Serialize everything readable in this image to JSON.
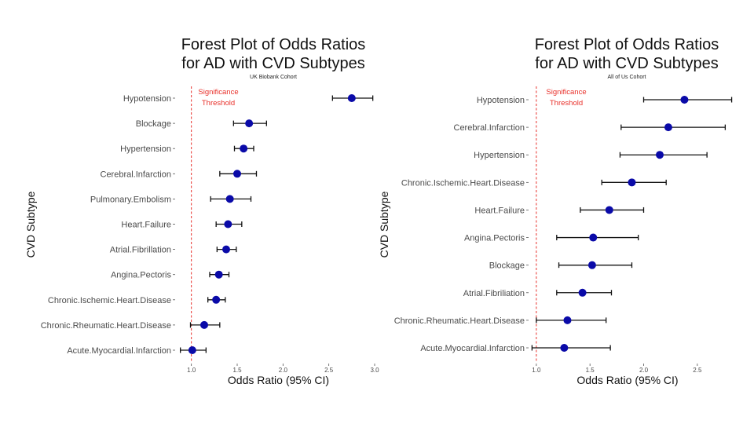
{
  "chart_data": [
    {
      "type": "scatter",
      "subtype": "forest-plot",
      "title": [
        "Forest Plot of Odds Ratios",
        "for AD with CVD Subtypes"
      ],
      "subtitle": "UK Biobank Cohort",
      "xlabel": "Odds Ratio (95% CI)",
      "ylabel": "CVD Subtype",
      "xlim": [
        0.9,
        3.0
      ],
      "xticks": [
        1.0,
        1.5,
        2.0,
        2.5,
        3.0
      ],
      "xtick_labels": [
        "1.0",
        "1.5",
        "2.0",
        "2.5",
        "3.0"
      ],
      "threshold": 1.0,
      "threshold_label": [
        "Significance",
        "Threshold"
      ],
      "grid": false,
      "point_color": "#0a0aa8",
      "threshold_color": "#e8302a",
      "rows": [
        {
          "label": "Hypotension",
          "or": 2.75,
          "lo": 2.54,
          "hi": 2.98
        },
        {
          "label": "Blockage",
          "or": 1.63,
          "lo": 1.46,
          "hi": 1.82
        },
        {
          "label": "Hypertension",
          "or": 1.57,
          "lo": 1.47,
          "hi": 1.68
        },
        {
          "label": "Cerebral.Infarction",
          "or": 1.5,
          "lo": 1.31,
          "hi": 1.71
        },
        {
          "label": "Pulmonary.Embolism",
          "or": 1.42,
          "lo": 1.21,
          "hi": 1.65
        },
        {
          "label": "Heart.Failure",
          "or": 1.4,
          "lo": 1.27,
          "hi": 1.55
        },
        {
          "label": "Atrial.Fibrillation",
          "or": 1.38,
          "lo": 1.28,
          "hi": 1.49
        },
        {
          "label": "Angina.Pectoris",
          "or": 1.3,
          "lo": 1.2,
          "hi": 1.41
        },
        {
          "label": "Chronic.Ischemic.Heart.Disease",
          "or": 1.27,
          "lo": 1.18,
          "hi": 1.37
        },
        {
          "label": "Chronic.Rheumatic.Heart.Disease",
          "or": 1.14,
          "lo": 0.99,
          "hi": 1.31
        },
        {
          "label": "Acute.Myocardial.Infarction",
          "or": 1.01,
          "lo": 0.88,
          "hi": 1.16
        }
      ]
    },
    {
      "type": "scatter",
      "subtype": "forest-plot",
      "title": [
        "Forest Plot of Odds Ratios",
        "for AD with CVD Subtypes"
      ],
      "subtitle": "All of Us Cohort",
      "xlabel": "Odds Ratio (95% CI)",
      "ylabel": "CVD Subtype",
      "xlim": [
        0.95,
        2.75
      ],
      "xticks": [
        1.0,
        1.5,
        2.0,
        2.5
      ],
      "xtick_labels": [
        "1.0",
        "1.5",
        "2.0",
        "2.5"
      ],
      "threshold": 1.0,
      "threshold_label": [
        "Significance",
        "Threshold"
      ],
      "grid": false,
      "point_color": "#0a0aa8",
      "threshold_color": "#e8302a",
      "rows": [
        {
          "label": "Hypotension",
          "or": 2.38,
          "lo": 2.0,
          "hi": 2.82
        },
        {
          "label": "Cerebral.Infarction",
          "or": 2.23,
          "lo": 1.79,
          "hi": 2.76
        },
        {
          "label": "Hypertension",
          "or": 2.15,
          "lo": 1.78,
          "hi": 2.59
        },
        {
          "label": "Chronic.Ischemic.Heart.Disease",
          "or": 1.89,
          "lo": 1.61,
          "hi": 2.21
        },
        {
          "label": "Heart.Failure",
          "or": 1.68,
          "lo": 1.41,
          "hi": 2.0
        },
        {
          "label": "Angina.Pectoris",
          "or": 1.53,
          "lo": 1.19,
          "hi": 1.95
        },
        {
          "label": "Blockage",
          "or": 1.52,
          "lo": 1.21,
          "hi": 1.89
        },
        {
          "label": "Atrial.Fibriliation",
          "or": 1.43,
          "lo": 1.19,
          "hi": 1.7
        },
        {
          "label": "Chronic.Rheumatic.Heart.Disease",
          "or": 1.29,
          "lo": 1.0,
          "hi": 1.65
        },
        {
          "label": "Acute.Myocardial.Infarction",
          "or": 1.26,
          "lo": 0.96,
          "hi": 1.69
        }
      ]
    }
  ]
}
